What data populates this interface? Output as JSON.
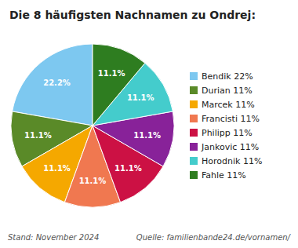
{
  "chart_data": {
    "type": "pie",
    "title": "Die 8 häufigsten Nachnamen zu Ondrej:",
    "categories": [
      "Bendik 22%",
      "Durian 11%",
      "Marcek 11%",
      "Francisti 11%",
      "Philipp 11%",
      "Jankovic 11%",
      "Horodnik 11%",
      "Fahle 11%"
    ],
    "values": [
      22.2,
      11.1,
      11.1,
      11.1,
      11.1,
      11.1,
      11.1,
      11.1
    ],
    "value_labels": [
      "22.2%",
      "11.1%",
      "11.1%",
      "11.1%",
      "11.1%",
      "11.1%",
      "11.1%",
      "11.1%"
    ],
    "colors": [
      "#7DC8F0",
      "#5A8A28",
      "#F5A800",
      "#F07850",
      "#CC1144",
      "#882299",
      "#44CCCC",
      "#2E7D20"
    ],
    "data_labels": true,
    "legend": "right",
    "annotations": [
      "Stand: November 2024",
      "Quelle: familienbande24.de/vornamen/"
    ]
  }
}
